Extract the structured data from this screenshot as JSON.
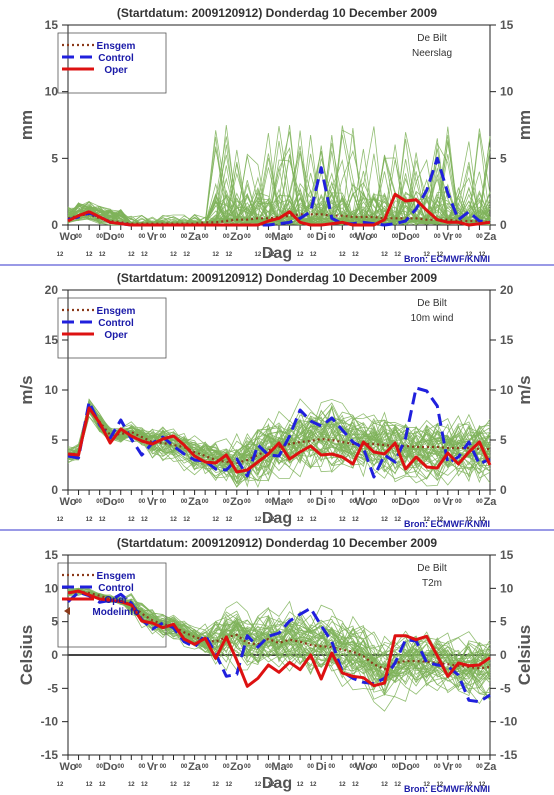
{
  "meta": {
    "title": "(Startdatum: 2009120912)   Donderdag 10 December  2009",
    "source": "Bron: ECMWF/KNMI",
    "xlabel": "Dag",
    "days": [
      "Wo",
      "Do",
      "Vr",
      "Za",
      "Zo",
      "Ma",
      "Di",
      "Wo",
      "Do",
      "Vr",
      "Za"
    ],
    "hour_labels": [
      "12",
      "00"
    ],
    "legend": [
      "Ensgem",
      "Control",
      "Oper"
    ],
    "colors": {
      "ensgem": "#8B3A1A",
      "control": "#2020DD",
      "oper": "#DD1111",
      "members": "#7FB35A",
      "title": "#333333",
      "source": "#1a1aa8"
    }
  },
  "chart_data": [
    {
      "type": "line",
      "station": "De Bilt",
      "variable": "Neerslag",
      "ylabel_left": "mm",
      "ylabel_right": "mm",
      "ylim": [
        0,
        15
      ],
      "yticks": [
        0,
        5,
        10,
        15
      ],
      "x_steps": 20,
      "series": [
        {
          "name": "Ensgem",
          "values": [
            0.5,
            0.7,
            0.8,
            0.5,
            0.3,
            0.2,
            0.1,
            0.1,
            0.1,
            0.1,
            0.1,
            0.1,
            0.1,
            0.2,
            0.2,
            0.3,
            0.4,
            0.4,
            0.5,
            0.5,
            0.6,
            0.7,
            0.8,
            0.8,
            0.8,
            0.7,
            0.7,
            0.6,
            0.6,
            0.6,
            0.5,
            0.5,
            0.5,
            0.5,
            0.4,
            0.4,
            0.4,
            0.3,
            0.3,
            0.3,
            0.2
          ]
        },
        {
          "name": "Control",
          "values": [
            0.4,
            0.6,
            0.9,
            0.6,
            0.2,
            0.1,
            0.0,
            0.0,
            0.0,
            0.0,
            0.0,
            0.0,
            0.0,
            0.0,
            0.0,
            0.0,
            0.0,
            0.0,
            0.0,
            0.0,
            0.1,
            0.2,
            0.5,
            1.0,
            4.3,
            0.5,
            0.1,
            0.1,
            0.2,
            0.1,
            0.0,
            0.1,
            0.3,
            1.2,
            2.6,
            5.0,
            2.4,
            0.4,
            1.0,
            0.3,
            0.2
          ]
        },
        {
          "name": "Oper",
          "values": [
            0.3,
            0.7,
            1.0,
            0.6,
            0.2,
            0.1,
            0.0,
            0.0,
            0.0,
            0.0,
            0.0,
            0.0,
            0.0,
            0.0,
            0.0,
            0.0,
            0.0,
            0.0,
            0.0,
            0.3,
            0.5,
            1.0,
            0.2,
            0.0,
            0.0,
            0.1,
            0.2,
            0.0,
            0.0,
            0.0,
            0.4,
            2.3,
            1.8,
            1.9,
            1.1,
            0.4,
            0.2,
            0.2,
            0.0,
            0.1,
            0.2
          ]
        }
      ]
    },
    {
      "type": "line",
      "station": "De Bilt",
      "variable": "10m wind",
      "ylabel_left": "m/s",
      "ylabel_right": "m/s",
      "ylim": [
        0,
        20
      ],
      "yticks": [
        0,
        5,
        10,
        15,
        20
      ],
      "x_steps": 20,
      "series": [
        {
          "name": "Ensgem",
          "values": [
            3.5,
            3.7,
            8.3,
            6.8,
            5.5,
            5.6,
            5.8,
            5.3,
            4.8,
            4.7,
            4.5,
            4.3,
            3.8,
            3.4,
            3.0,
            2.8,
            2.7,
            3.0,
            3.5,
            4.0,
            4.3,
            4.6,
            4.8,
            4.9,
            5.1,
            5.0,
            4.8,
            4.6,
            4.6,
            4.6,
            4.5,
            4.4,
            4.4,
            4.3,
            4.3,
            4.3,
            4.2,
            4.2,
            4.2,
            4.1,
            4.1
          ]
        },
        {
          "name": "Control",
          "values": [
            3.4,
            3.2,
            8.8,
            6.5,
            5.2,
            7.0,
            5.1,
            3.5,
            4.7,
            5.3,
            4.4,
            3.6,
            3.0,
            2.9,
            2.1,
            2.0,
            3.1,
            1.4,
            4.5,
            3.5,
            3.4,
            5.4,
            8.0,
            6.9,
            6.4,
            7.2,
            6.0,
            4.8,
            4.2,
            1.3,
            3.5,
            2.8,
            5.2,
            10.2,
            9.9,
            8.4,
            2.7,
            3.3,
            4.8,
            2.6,
            3.1
          ]
        },
        {
          "name": "Oper",
          "values": [
            3.6,
            3.5,
            8.2,
            6.7,
            4.7,
            6.1,
            5.4,
            4.9,
            4.6,
            5.1,
            5.4,
            4.5,
            3.4,
            2.8,
            2.7,
            3.5,
            1.8,
            2.0,
            2.8,
            3.6,
            4.7,
            3.1,
            3.8,
            4.4,
            3.5,
            3.6,
            3.3,
            2.6,
            4.8,
            3.8,
            3.6,
            4.7,
            2.1,
            3.3,
            2.3,
            2.2,
            3.7,
            2.6,
            3.8,
            4.8,
            2.5
          ]
        }
      ]
    },
    {
      "type": "line",
      "station": "De Bilt",
      "variable": "T2m",
      "ylabel_left": "Celsius",
      "ylabel_right": "Celsius",
      "ylim": [
        -15,
        15
      ],
      "yticks": [
        -15,
        -10,
        -5,
        0,
        5,
        10,
        15
      ],
      "x_steps": 20,
      "extra_legend": "Modelinfo",
      "series": [
        {
          "name": "Ensgem",
          "values": [
            9.4,
            9.5,
            9.3,
            8.9,
            8.4,
            8.1,
            7.6,
            6.2,
            5.2,
            4.6,
            4.3,
            3.4,
            2.7,
            2.2,
            2.0,
            2.7,
            3.0,
            1.8,
            1.6,
            2.4,
            1.8,
            2.3,
            2.0,
            1.5,
            1.3,
            1.2,
            0.8,
            0.5,
            -0.2,
            -1.4,
            -2.1,
            -1.2,
            -0.9,
            -0.9,
            -1.0,
            -1.2,
            -1.4,
            -1.6,
            -1.8,
            -2.0,
            -1.8
          ]
        },
        {
          "name": "Control",
          "values": [
            8.0,
            9.4,
            8.9,
            7.9,
            8.2,
            9.1,
            7.8,
            5.3,
            3.9,
            4.8,
            4.1,
            2.0,
            1.2,
            3.0,
            0.2,
            -3.2,
            -2.9,
            2.9,
            1.2,
            2.8,
            3.3,
            5.1,
            6.1,
            7.0,
            4.4,
            2.0,
            -2.5,
            -3.5,
            -4.1,
            -4.3,
            -3.5,
            -1.2,
            2.3,
            2.1,
            -1.1,
            -1.5,
            -1.7,
            -3.0,
            -6.8,
            -7.0,
            -6.0
          ]
        },
        {
          "name": "Oper",
          "values": [
            9.3,
            9.6,
            9.0,
            8.4,
            8.2,
            8.0,
            7.5,
            5.1,
            4.8,
            4.1,
            4.6,
            2.4,
            1.6,
            2.5,
            -0.5,
            2.7,
            -0.8,
            -4.7,
            -3.5,
            -1.5,
            -2.6,
            -1.1,
            -2.2,
            0.0,
            -3.6,
            0.3,
            -2.7,
            -3.2,
            -3.4,
            -4.6,
            -4.2,
            2.9,
            2.9,
            2.3,
            2.8,
            -0.1,
            -3.2,
            -1.2,
            -1.6,
            -1.5,
            -0.4
          ]
        }
      ]
    }
  ]
}
